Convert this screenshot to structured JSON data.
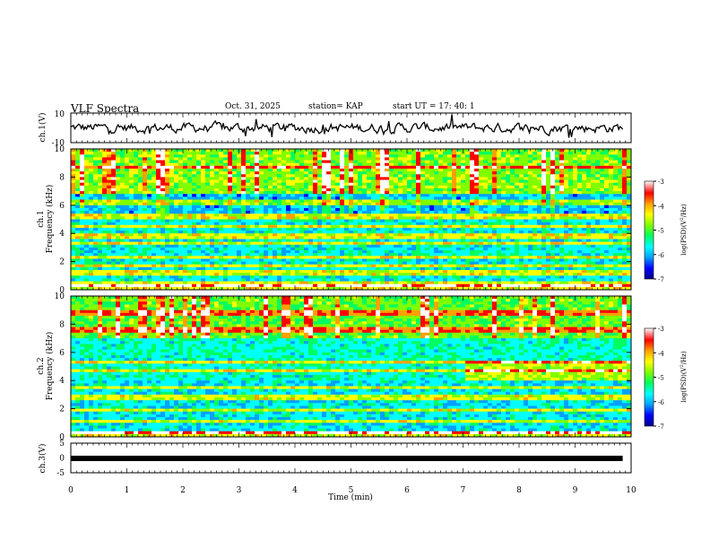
{
  "header": {
    "title": "VLF Spectra",
    "date": "Oct. 31, 2025",
    "station": "station= KAP",
    "start": "start  UT  =   17: 40: 1"
  },
  "chart_data": [
    {
      "type": "line",
      "name": "ch1-waveform",
      "ylabel": "ch.1(V)",
      "ylim": [
        -10,
        10
      ],
      "yticks": [
        "10",
        "-10"
      ],
      "xlim": [
        0,
        10
      ],
      "baseline": 0,
      "xlabel": ""
    },
    {
      "type": "heatmap",
      "name": "ch1-spectrogram",
      "ylabel": "ch.1\nFrequency (kHz)",
      "ylim": [
        0,
        10
      ],
      "yticks": [
        "0",
        "2",
        "4",
        "6",
        "8",
        "10"
      ],
      "xlim": [
        0,
        10
      ],
      "colorbar": {
        "label": "log(PSD)(V²/Hz)",
        "ticks": [
          "-3",
          "-4",
          "-5",
          "-6",
          "-7"
        ],
        "range": [
          -7,
          -3
        ]
      },
      "colormap": [
        "#00008a",
        "#0000ff",
        "#00a0ff",
        "#00ffff",
        "#00ff60",
        "#7fff00",
        "#ffff00",
        "#ffa000",
        "#ff0000",
        "#ffffff"
      ]
    },
    {
      "type": "heatmap",
      "name": "ch2-spectrogram",
      "ylabel": "ch.2\nFrequency (kHz)",
      "ylim": [
        0,
        10
      ],
      "yticks": [
        "0",
        "2",
        "4",
        "6",
        "8",
        "10"
      ],
      "xlim": [
        0,
        10
      ],
      "colorbar": {
        "label": "log(PSD)(V²/Hz)",
        "ticks": [
          "-3",
          "-4",
          "-5",
          "-6",
          "-7"
        ],
        "range": [
          -7,
          -3
        ]
      }
    },
    {
      "type": "line",
      "name": "ch3-waveform",
      "ylabel": "ch.3(V)",
      "ylim": [
        -5,
        5
      ],
      "yticks": [
        "5",
        "0",
        "-5"
      ],
      "xlim": [
        0,
        10
      ],
      "xticks": [
        "0",
        "1",
        "2",
        "3",
        "4",
        "5",
        "6",
        "7",
        "8",
        "9",
        "10"
      ],
      "xlabel": "Time  (min)",
      "data_end": 9.85
    }
  ]
}
